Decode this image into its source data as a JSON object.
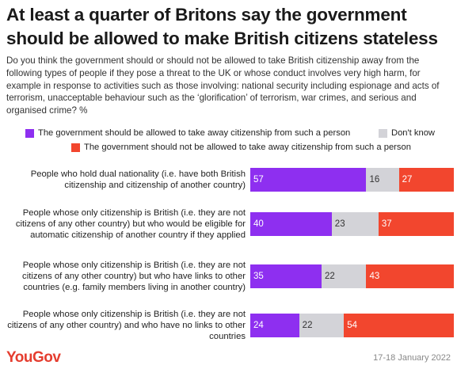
{
  "title": "At least a quarter of Britons say the government should be allowed to make British citizens stateless",
  "subtitle": "Do you think the government should or should not be allowed to take British citizenship away from the following types of people if they pose a threat to the UK or whose conduct involves very high harm, for example in response to activities such as those involving: national security including espionage and acts of terrorism, unacceptable behaviour such as the ‘glorification’ of terrorism, war crimes, and serious and organised crime? %",
  "legend": [
    {
      "label": "The government should be allowed to take away citizenship from such a person",
      "color": "#8e2ff0"
    },
    {
      "label": "Don't know",
      "color": "#d3d3d8"
    },
    {
      "label": "The government should not be allowed to take away citizenship from such a person",
      "color": "#f2462e"
    }
  ],
  "footer": {
    "brand": "YouGov",
    "date": "17-18 January 2022"
  },
  "chart_data": {
    "type": "bar",
    "orientation": "horizontal",
    "stacked": true,
    "categories": [
      "People who hold dual nationality (i.e. have both British citizenship and citizenship of another country)",
      "People whose only citizenship is British (i.e. they are not citizens of any other country) but who would be eligible for automatic citizenship of another country if they applied",
      "People whose only citizenship is British (i.e. they are not citizens of any other country) but who have links to other countries (e.g. family members living in another country)",
      "People whose only citizenship is British (i.e. they are not citizens of any other country) and who have no links to other countries"
    ],
    "series": [
      {
        "name": "The government should be allowed to take away citizenship from such a person",
        "values": [
          57,
          40,
          35,
          24
        ],
        "color": "#8e2ff0",
        "label_color": "#ffffff"
      },
      {
        "name": "Don't know",
        "values": [
          16,
          23,
          22,
          22
        ],
        "color": "#d3d3d8",
        "label_color": "#333333"
      },
      {
        "name": "The government should not be allowed to take away citizenship from such a person",
        "values": [
          27,
          37,
          43,
          54
        ],
        "color": "#f2462e",
        "label_color": "#ffffff"
      }
    ],
    "xlim": [
      0,
      100
    ],
    "grid": false,
    "legend_position": "top"
  }
}
